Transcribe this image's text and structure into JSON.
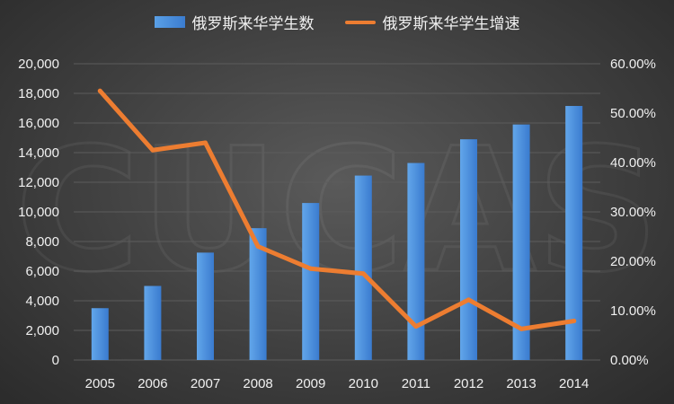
{
  "chart_data": {
    "type": "bar",
    "categories": [
      "2005",
      "2006",
      "2007",
      "2008",
      "2009",
      "2010",
      "2011",
      "2012",
      "2013",
      "2014"
    ],
    "series": [
      {
        "name": "俄罗斯来华学生数",
        "type": "bar",
        "axis": "left",
        "color": "#4a90dc",
        "values": [
          3500,
          5000,
          7250,
          8900,
          10600,
          12450,
          13300,
          14900,
          15900,
          17150
        ]
      },
      {
        "name": "俄罗斯来华学生增速",
        "type": "line",
        "axis": "right",
        "color": "#ed7d31",
        "values": [
          54.5,
          42.5,
          44.0,
          23.0,
          18.5,
          17.5,
          6.8,
          12.2,
          6.3,
          7.9
        ]
      }
    ],
    "ylim_left": [
      0,
      20000
    ],
    "ylim_right": [
      0,
      60
    ],
    "yticks_left": [
      "0",
      "2,000",
      "4,000",
      "6,000",
      "8,000",
      "10,000",
      "12,000",
      "14,000",
      "16,000",
      "18,000",
      "20,000"
    ],
    "yticks_right": [
      "0.00%",
      "10.00%",
      "20.00%",
      "30.00%",
      "40.00%",
      "50.00%",
      "60.00%"
    ],
    "title": "",
    "xlabel": "",
    "ylabel": "",
    "grid": true,
    "legend_position": "top-center"
  },
  "legend": {
    "bar_label": "俄罗斯来华学生数",
    "line_label": "俄罗斯来华学生增速"
  },
  "watermark_text": "CUCAS",
  "colors": {
    "background": "#3f3f3f",
    "bar": "#4a90dc",
    "line": "#ed7d31",
    "text": "#f0f0f0",
    "grid": "#5c5c5c"
  }
}
